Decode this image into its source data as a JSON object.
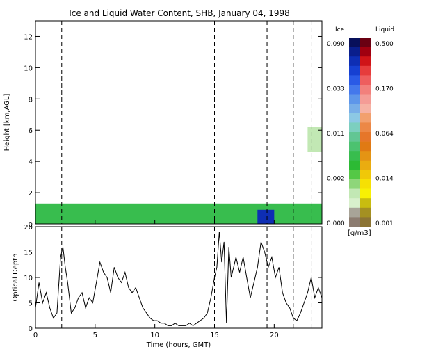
{
  "chart_data": [
    {
      "type": "heatmap",
      "title": "Ice and Liquid Water Content, SHB, January 04, 1998",
      "ylabel": "Height [km,AGL]",
      "xlim": [
        0,
        24
      ],
      "ylim": [
        0,
        13
      ],
      "yticks": [
        0,
        2,
        4,
        6,
        8,
        10,
        12
      ],
      "xticks": [
        0,
        5,
        10,
        15,
        20
      ],
      "vertical_dashed_lines_hours": [
        2.2,
        15.0,
        19.4,
        21.6,
        23.1
      ],
      "colorbar": {
        "ice_label": "Ice",
        "liquid_label": "Liquid",
        "unit_label": "[g/m3]",
        "ice_ticks": [
          "0.090",
          "0.033",
          "0.011",
          "0.002",
          "0.000"
        ],
        "liquid_ticks": [
          "0.500",
          "0.170",
          "0.064",
          "0.014",
          "0.001"
        ],
        "ice_colors": [
          "#08105a",
          "#0a1e8c",
          "#0e2eb4",
          "#1640d2",
          "#2a5ae6",
          "#4478ec",
          "#5e96ea",
          "#78aee8",
          "#8cc8e4",
          "#7ccfbf",
          "#62c694",
          "#4cc270",
          "#38bd4e",
          "#2cba34",
          "#54c846",
          "#8ed67a",
          "#c2e8b4",
          "#d8f0cc",
          "#a8a498",
          "#8c7c70"
        ],
        "liquid_colors": [
          "#6a0012",
          "#a00010",
          "#d01418",
          "#e63c3c",
          "#ee5e5e",
          "#f2807c",
          "#f49c96",
          "#f6b2a4",
          "#f2a06e",
          "#ec8846",
          "#e6762a",
          "#e07a14",
          "#e49414",
          "#eaac10",
          "#f0c808",
          "#f6e004",
          "#f8f004",
          "#c8bc10",
          "#a49022",
          "#8c7434"
        ]
      },
      "regions": [
        {
          "name": "boundary layer cloud",
          "x": [
            0.0,
            24.0
          ],
          "y": [
            0.0,
            1.3
          ],
          "color": "#38bd4e"
        },
        {
          "name": "dense ice patch",
          "x": [
            18.6,
            20.0
          ],
          "y": [
            0.0,
            0.9
          ],
          "color": "#0e2eb4"
        },
        {
          "name": "upper cloud",
          "x": [
            22.8,
            24.0
          ],
          "y": [
            4.6,
            6.2
          ],
          "color": "#c2e8b4"
        }
      ]
    },
    {
      "type": "line",
      "ylabel": "Optical Depth",
      "xlabel": "Time (hours, GMT)",
      "xlim": [
        0,
        24
      ],
      "ylim": [
        0,
        20
      ],
      "xticks": [
        0,
        5,
        10,
        15,
        20
      ],
      "yticks": [
        0,
        5,
        10,
        15,
        20
      ],
      "vertical_dashed_lines_hours": [
        2.2,
        15.0,
        19.4,
        21.6,
        23.1
      ],
      "x": [
        0,
        0.3,
        0.6,
        0.9,
        1.2,
        1.5,
        1.8,
        2.1,
        2.3,
        2.5,
        2.7,
        3.0,
        3.3,
        3.6,
        3.9,
        4.2,
        4.5,
        4.8,
        5.1,
        5.4,
        5.7,
        6.0,
        6.3,
        6.6,
        6.9,
        7.2,
        7.5,
        7.8,
        8.1,
        8.4,
        8.7,
        9.0,
        9.3,
        9.6,
        9.9,
        10.2,
        10.5,
        10.8,
        11.1,
        11.4,
        11.7,
        12.0,
        12.3,
        12.6,
        12.9,
        13.2,
        13.5,
        13.8,
        14.1,
        14.4,
        14.7,
        15.0,
        15.2,
        15.4,
        15.6,
        15.8,
        16.0,
        16.2,
        16.4,
        16.6,
        16.8,
        17.1,
        17.4,
        17.7,
        18.0,
        18.3,
        18.6,
        18.9,
        19.2,
        19.5,
        19.8,
        20.1,
        20.4,
        20.7,
        21.0,
        21.3,
        21.6,
        21.9,
        22.2,
        22.5,
        22.8,
        23.1,
        23.4,
        23.7,
        24.0
      ],
      "values": [
        4,
        9,
        5,
        7,
        4,
        2,
        3,
        14,
        16,
        12,
        9,
        3,
        4,
        6,
        7,
        4,
        6,
        5,
        9,
        13,
        11,
        10,
        7,
        12,
        10,
        9,
        11,
        8,
        7,
        8,
        6,
        4,
        3,
        2,
        1.5,
        1.5,
        1,
        1,
        0.5,
        0.5,
        1,
        0.5,
        0.5,
        0.5,
        1,
        0.5,
        1,
        1.5,
        2,
        3,
        6,
        10,
        12,
        19,
        13,
        17,
        1,
        16,
        10,
        12,
        14,
        11,
        14,
        10,
        6,
        9,
        12,
        17,
        15,
        12,
        14,
        10,
        12,
        7,
        5,
        4,
        2,
        1.5,
        3,
        5,
        7,
        10,
        6,
        8,
        6
      ]
    }
  ]
}
